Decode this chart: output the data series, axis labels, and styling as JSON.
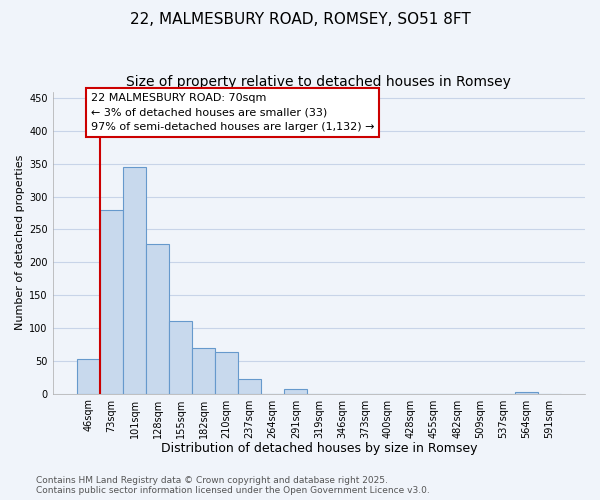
{
  "title": "22, MALMESBURY ROAD, ROMSEY, SO51 8FT",
  "subtitle": "Size of property relative to detached houses in Romsey",
  "xlabel": "Distribution of detached houses by size in Romsey",
  "ylabel": "Number of detached properties",
  "categories": [
    "46sqm",
    "73sqm",
    "101sqm",
    "128sqm",
    "155sqm",
    "182sqm",
    "210sqm",
    "237sqm",
    "264sqm",
    "291sqm",
    "319sqm",
    "346sqm",
    "373sqm",
    "400sqm",
    "428sqm",
    "455sqm",
    "482sqm",
    "509sqm",
    "537sqm",
    "564sqm",
    "591sqm"
  ],
  "values": [
    52,
    280,
    345,
    228,
    110,
    70,
    63,
    22,
    0,
    7,
    0,
    0,
    0,
    0,
    0,
    0,
    0,
    0,
    0,
    2,
    0
  ],
  "bar_color": "#c8d9ed",
  "bar_edge_color": "#6699cc",
  "highlight_line_color": "#cc0000",
  "highlight_index": 1,
  "annotation_text": "22 MALMESBURY ROAD: 70sqm\n← 3% of detached houses are smaller (33)\n97% of semi-detached houses are larger (1,132) →",
  "annotation_box_facecolor": "#ffffff",
  "annotation_box_edgecolor": "#cc0000",
  "ylim": [
    0,
    460
  ],
  "yticks": [
    0,
    50,
    100,
    150,
    200,
    250,
    300,
    350,
    400,
    450
  ],
  "bg_color": "#f0f4fa",
  "grid_color": "#c8d4e8",
  "footer_text": "Contains HM Land Registry data © Crown copyright and database right 2025.\nContains public sector information licensed under the Open Government Licence v3.0.",
  "title_fontsize": 11,
  "subtitle_fontsize": 10,
  "xlabel_fontsize": 9,
  "ylabel_fontsize": 8,
  "tick_fontsize": 7,
  "annotation_fontsize": 8,
  "footer_fontsize": 6.5
}
